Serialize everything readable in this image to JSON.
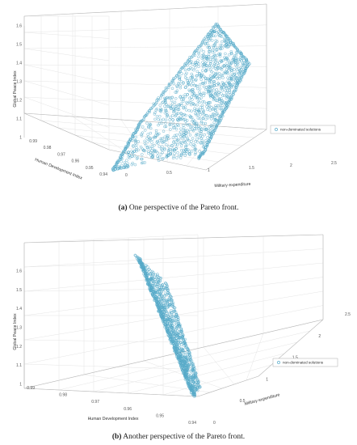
{
  "chart_data": [
    {
      "type": "scatter",
      "projection": "3d",
      "xlabel": "Military expenditure",
      "ylabel": "Human Development Index",
      "zlabel": "Global Peace Index",
      "xlim": [
        0,
        2.5
      ],
      "ylim": [
        0.94,
        0.99
      ],
      "zlim": [
        1,
        1.6
      ],
      "xticks": [
        "0",
        "0.5",
        "1",
        "1.5",
        "2",
        "2.5"
      ],
      "yticks": [
        "0.99",
        "0.98",
        "0.97",
        "0.96",
        "0.95",
        "0.94"
      ],
      "zticks": [
        "1",
        "1.1",
        "1.2",
        "1.3",
        "1.4",
        "1.5",
        "1.6"
      ],
      "grid": true,
      "legend": {
        "position": "right",
        "entries": [
          "non-dominated solutions"
        ]
      },
      "series": [
        {
          "name": "non-dominated solutions",
          "marker": "o",
          "color": "#3a9cc0",
          "point_count": 1100,
          "boundary_edges": [
            {
              "from": {
                "x": 0.05,
                "y": 0.945,
                "z": 1.08
              },
              "to": {
                "x": 0.35,
                "y": 0.985,
                "z": 1.45
              }
            },
            {
              "from": {
                "x": 0.35,
                "y": 0.985,
                "z": 1.45
              },
              "to": {
                "x": 0.9,
                "y": 0.99,
                "z": 1.58
              }
            },
            {
              "from": {
                "x": 0.9,
                "y": 0.99,
                "z": 1.58
              },
              "to": {
                "x": 2.5,
                "y": 0.96,
                "z": 1.45
              }
            },
            {
              "from": {
                "x": 2.5,
                "y": 0.96,
                "z": 1.45
              },
              "to": {
                "x": 1.2,
                "y": 0.94,
                "z": 1.0
              }
            }
          ]
        }
      ],
      "caption_label": "(a)",
      "caption_text": " One perspective of the Pareto front."
    },
    {
      "type": "scatter",
      "projection": "3d",
      "xlabel": "Military expenditure",
      "ylabel": "Human Development Index",
      "zlabel": "Global Peace Index",
      "xlim": [
        0,
        2.5
      ],
      "ylim": [
        0.94,
        0.99
      ],
      "zlim": [
        1,
        1.6
      ],
      "xticks": [
        "0",
        "0.5",
        "1",
        "1.5",
        "2",
        "2.5"
      ],
      "yticks": [
        "0.99",
        "0.98",
        "0.97",
        "0.96",
        "0.95",
        "0.94"
      ],
      "zticks": [
        "1",
        "1.1",
        "1.2",
        "1.3",
        "1.4",
        "1.5",
        "1.6"
      ],
      "grid": true,
      "legend": {
        "position": "right",
        "entries": [
          "non-dominated solutions"
        ]
      },
      "series": [
        {
          "name": "non-dominated solutions",
          "marker": "o",
          "color": "#3a9cc0",
          "point_count": 900
        }
      ],
      "caption_label": "(b)",
      "caption_text": " Another perspective of the Pareto front."
    }
  ]
}
